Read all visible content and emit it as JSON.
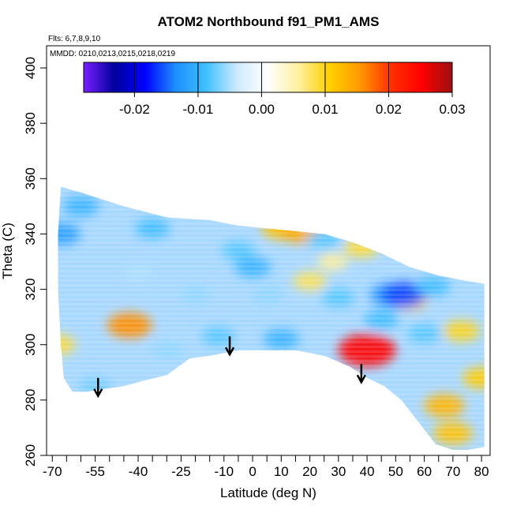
{
  "chart_data": {
    "type": "heatmap",
    "title": "ATOM2 Northbound f91_PM1_AMS",
    "notes": [
      "Flts: 6,7,8,9,10",
      "MMDD: 0210,0213,0215,0218,0219"
    ],
    "xlabel": "Latitude (deg N)",
    "ylabel": "Theta (C)",
    "xlim": [
      -72,
      83
    ],
    "ylim": [
      260,
      408
    ],
    "x_ticks": [
      -70,
      -55,
      -40,
      -25,
      -10,
      0,
      10,
      20,
      30,
      40,
      50,
      60,
      70,
      80
    ],
    "x_tick_labels": [
      "-70",
      "-55",
      "-40",
      "-25",
      "-10",
      "0",
      "10",
      "20",
      "30",
      "40",
      "50",
      "60",
      "70",
      "80"
    ],
    "x_minor_ticks": [
      -65,
      -60,
      -50,
      -45,
      -35,
      -30,
      -20,
      -15,
      -5,
      5,
      15,
      25,
      35,
      45,
      55,
      65,
      75
    ],
    "y_ticks": [
      260,
      280,
      300,
      320,
      340,
      360,
      380,
      400
    ],
    "y_tick_labels": [
      "260",
      "280",
      "300",
      "320",
      "340",
      "360",
      "380",
      "400"
    ],
    "colorbar": {
      "range": [
        -0.028,
        0.03
      ],
      "ticks": [
        -0.02,
        -0.01,
        0.0,
        0.01,
        0.02,
        0.03
      ],
      "tick_labels": [
        "-0.02",
        "-0.01",
        "0.00",
        "0.01",
        "0.02",
        "0.03"
      ],
      "colors": [
        "#7a1fff",
        "#00009c",
        "#0000ff",
        "#1e90ff",
        "#3fc0ff",
        "#cfeaff",
        "#ffffff",
        "#fff0a0",
        "#ffd000",
        "#ff9900",
        "#ff3000",
        "#ff0000",
        "#9c0f0f"
      ]
    },
    "coverage_outline": [
      [
        -67,
        357
      ],
      [
        -60,
        355
      ],
      [
        -45,
        350
      ],
      [
        -30,
        346
      ],
      [
        -15,
        345
      ],
      [
        -5,
        343
      ],
      [
        5,
        342
      ],
      [
        15,
        341
      ],
      [
        25,
        340
      ],
      [
        35,
        337
      ],
      [
        45,
        333
      ],
      [
        55,
        328
      ],
      [
        65,
        325
      ],
      [
        75,
        323
      ],
      [
        81,
        322
      ],
      [
        81,
        263
      ],
      [
        75,
        262
      ],
      [
        70,
        262
      ],
      [
        64,
        264
      ],
      [
        58,
        272
      ],
      [
        52,
        280
      ],
      [
        46,
        285
      ],
      [
        40,
        288
      ],
      [
        34,
        292
      ],
      [
        25,
        296
      ],
      [
        15,
        298
      ],
      [
        5,
        298
      ],
      [
        -5,
        298
      ],
      [
        -15,
        296
      ],
      [
        -22,
        295
      ],
      [
        -30,
        289
      ],
      [
        -38,
        287
      ],
      [
        -45,
        285
      ],
      [
        -52,
        284
      ],
      [
        -58,
        283
      ],
      [
        -63,
        283
      ],
      [
        -66,
        288
      ],
      [
        -67,
        300
      ],
      [
        -68,
        320
      ],
      [
        -68,
        340
      ]
    ],
    "anomalies": [
      {
        "lat": -43,
        "theta": 307,
        "value": 0.016
      },
      {
        "lat": 40,
        "theta": 298,
        "value": 0.025
      },
      {
        "lat": 67,
        "theta": 278,
        "value": 0.013
      },
      {
        "lat": 70,
        "theta": 268,
        "value": 0.012
      },
      {
        "lat": 20,
        "theta": 323,
        "value": 0.008
      },
      {
        "lat": 28,
        "theta": 330,
        "value": 0.006
      },
      {
        "lat": 38,
        "theta": 335,
        "value": 0.009
      },
      {
        "lat": 10,
        "theta": 342,
        "value": 0.012
      },
      {
        "lat": 17,
        "theta": 341,
        "value": 0.014
      },
      {
        "lat": 55,
        "theta": 316,
        "value": 0.01
      },
      {
        "lat": 80,
        "theta": 288,
        "value": 0.011
      },
      {
        "lat": 73,
        "theta": 305,
        "value": 0.01
      },
      {
        "lat": -68,
        "theta": 300,
        "value": 0.009
      },
      {
        "lat": -20,
        "theta": 318,
        "value": -0.006
      },
      {
        "lat": -12,
        "theta": 303,
        "value": -0.008
      },
      {
        "lat": 0,
        "theta": 328,
        "value": -0.01
      },
      {
        "lat": -5,
        "theta": 334,
        "value": -0.008
      },
      {
        "lat": 30,
        "theta": 317,
        "value": -0.008
      },
      {
        "lat": 48,
        "theta": 318,
        "value": -0.013
      },
      {
        "lat": 53,
        "theta": 318,
        "value": -0.016
      },
      {
        "lat": 45,
        "theta": 309,
        "value": -0.009
      },
      {
        "lat": 10,
        "theta": 302,
        "value": -0.01
      },
      {
        "lat": -30,
        "theta": 298,
        "value": -0.006
      },
      {
        "lat": -55,
        "theta": 285,
        "value": -0.007
      },
      {
        "lat": -60,
        "theta": 350,
        "value": -0.01
      },
      {
        "lat": -67,
        "theta": 340,
        "value": -0.012
      },
      {
        "lat": 25,
        "theta": 338,
        "value": -0.008
      },
      {
        "lat": 60,
        "theta": 304,
        "value": -0.008
      },
      {
        "lat": 63,
        "theta": 321,
        "value": -0.009
      },
      {
        "lat": -40,
        "theta": 326,
        "value": -0.005
      },
      {
        "lat": -35,
        "theta": 342,
        "value": -0.009
      },
      {
        "lat": 5,
        "theta": 318,
        "value": -0.006
      }
    ],
    "arrows": [
      {
        "lat": -54,
        "theta": 288
      },
      {
        "lat": -8,
        "theta": 303
      },
      {
        "lat": 38,
        "theta": 293
      }
    ]
  }
}
